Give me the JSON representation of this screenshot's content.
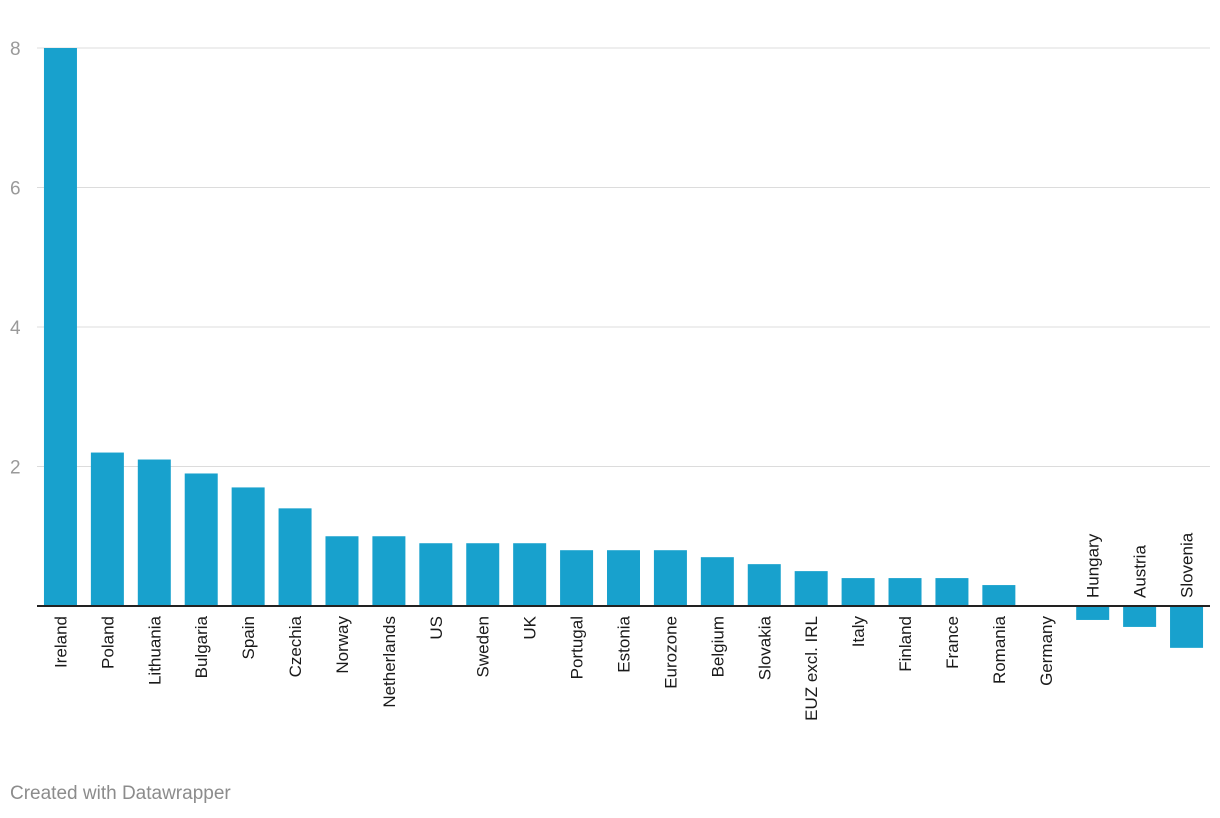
{
  "chart_data": {
    "type": "bar",
    "categories": [
      "Ireland",
      "Poland",
      "Lithuania",
      "Bulgaria",
      "Spain",
      "Czechia",
      "Norway",
      "Netherlands",
      "US",
      "Sweden",
      "UK",
      "Portugal",
      "Estonia",
      "Eurozone",
      "Belgium",
      "Slovakia",
      "EUZ excl. IRL",
      "Italy",
      "Finland",
      "France",
      "Romania",
      "Germany",
      "Hungary",
      "Austria",
      "Slovenia"
    ],
    "values": [
      8.0,
      2.2,
      2.1,
      1.9,
      1.7,
      1.4,
      1.0,
      1.0,
      0.9,
      0.9,
      0.9,
      0.8,
      0.8,
      0.8,
      0.7,
      0.6,
      0.5,
      0.4,
      0.4,
      0.4,
      0.3,
      0.0,
      -0.2,
      -0.3,
      -0.6
    ],
    "yticks": [
      2,
      4,
      6,
      8
    ],
    "ylim": [
      -0.6,
      8
    ],
    "color": "#18a1cd",
    "grid": true,
    "title": "",
    "xlabel": "",
    "ylabel": ""
  },
  "credit": "Created with Datawrapper"
}
